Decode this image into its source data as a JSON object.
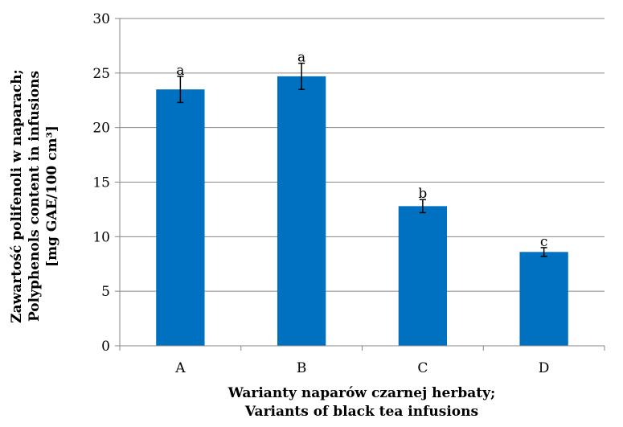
{
  "chart_data": {
    "type": "bar",
    "categories": [
      "A",
      "B",
      "C",
      "D"
    ],
    "series": [
      {
        "values": [
          23.5,
          24.7,
          12.8,
          8.6
        ],
        "errors": [
          1.2,
          1.2,
          0.6,
          0.4
        ],
        "significance": [
          "a",
          "a",
          "b",
          "c"
        ],
        "color": "#0070C0"
      }
    ],
    "ylim": [
      0,
      30
    ],
    "yticks": [
      0,
      5,
      10,
      15,
      20,
      25,
      30
    ],
    "grid": true,
    "legend": "none",
    "ylabel_lines": [
      "Zawartość polifenoli w naparach;",
      "Polyphenols content in infusions",
      "[mg GAE/100 cm³]"
    ],
    "xlabel_lines": [
      "Warianty naparów czarnej herbaty;",
      "Variants of black tea infusions"
    ]
  }
}
